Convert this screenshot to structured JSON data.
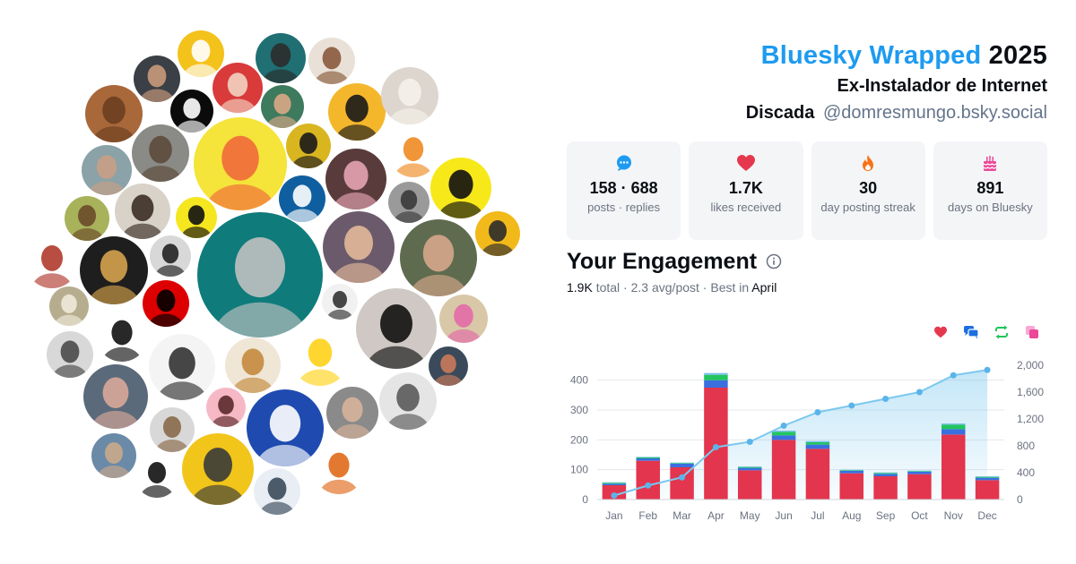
{
  "header": {
    "brand": "Bluesky Wrapped",
    "year": "2025",
    "subtitle": "Ex-Instalador de Internet",
    "display_name": "Discada",
    "handle": "@domresmungo.bsky.social"
  },
  "stats": [
    {
      "icon": "speech-bubble-icon",
      "color": "#1d9bf0",
      "value": "158 · 688",
      "label": "posts · replies"
    },
    {
      "icon": "heart-icon",
      "color": "#e5384f",
      "value": "1.7K",
      "label": "likes received"
    },
    {
      "icon": "fire-icon",
      "color": "#f97316",
      "value": "30",
      "label": "day posting streak"
    },
    {
      "icon": "cake-icon",
      "color": "#ec4899",
      "value": "891",
      "label": "days on Bluesky"
    }
  ],
  "engagement": {
    "title": "Your Engagement",
    "total": "1.9K",
    "total_label": "total",
    "avg": "2.3 avg/post",
    "best_label": "Best in",
    "best_month": "April"
  },
  "legend_icons": [
    {
      "name": "likes-legend-icon",
      "color": "#e5384f"
    },
    {
      "name": "replies-legend-icon",
      "color": "#1d6fe0"
    },
    {
      "name": "reposts-legend-icon",
      "color": "#22c55e"
    },
    {
      "name": "quotes-legend-icon",
      "color": "#ec4899"
    }
  ],
  "chart_data": {
    "type": "bar",
    "categories": [
      "Jan",
      "Feb",
      "Mar",
      "Apr",
      "May",
      "Jun",
      "Jul",
      "Aug",
      "Sep",
      "Oct",
      "Nov",
      "Dec"
    ],
    "series": [
      {
        "color": "#e3354d",
        "values": [
          48,
          130,
          108,
          375,
          98,
          200,
          170,
          88,
          78,
          85,
          218,
          65
        ]
      },
      {
        "color": "#3b6fe0",
        "values": [
          5,
          8,
          12,
          25,
          8,
          15,
          14,
          8,
          8,
          8,
          18,
          8
        ]
      },
      {
        "color": "#22c55e",
        "values": [
          3,
          3,
          2,
          18,
          3,
          12,
          8,
          2,
          3,
          2,
          15,
          3
        ]
      },
      {
        "color": "#7cc0ee",
        "values": [
          2,
          2,
          2,
          6,
          2,
          4,
          4,
          2,
          2,
          2,
          4,
          2
        ]
      }
    ],
    "cumulative": {
      "color": "#7cc8ef",
      "values": [
        60,
        210,
        330,
        780,
        860,
        1100,
        1300,
        1400,
        1500,
        1600,
        1850,
        1930
      ]
    },
    "ylim": [
      0,
      450
    ],
    "yticks": [
      0,
      100,
      200,
      300,
      400
    ],
    "y2lim": [
      0,
      2000
    ],
    "y2ticks": [
      0,
      400,
      800,
      1200,
      1600,
      2000
    ],
    "y2tick_labels": [
      "0",
      "400",
      "800",
      "1,200",
      "1,600",
      "2,000"
    ],
    "grid": true
  },
  "avatars": [
    {
      "name": "avatar-dog-shiba",
      "bg": "#f3c21b",
      "fg": "#ffffff"
    },
    {
      "name": "avatar-teal-woman",
      "bg": "#1f6f73",
      "fg": "#2b2b2b"
    },
    {
      "name": "avatar-woman-beige",
      "bg": "#e9e1d8",
      "fg": "#8a5a3c"
    },
    {
      "name": "avatar-man-beard",
      "bg": "#3b3f46",
      "fg": "#c99a7a"
    },
    {
      "name": "avatar-santa",
      "bg": "#d93b3b",
      "fg": "#f2d3c0"
    },
    {
      "name": "avatar-dog-brown",
      "bg": "#a8683a",
      "fg": "#6b3f20"
    },
    {
      "name": "avatar-symbol",
      "bg": "#0b0b0b",
      "fg": "#ffffff"
    },
    {
      "name": "avatar-man-glasses",
      "bg": "#3d7a5e",
      "fg": "#d9a885"
    },
    {
      "name": "avatar-cartoon-yellow",
      "bg": "#f4b72b",
      "fg": "#1a1a1a"
    },
    {
      "name": "avatar-poodle",
      "bg": "#dcd6cf",
      "fg": "#f5f1ea"
    },
    {
      "name": "avatar-old-man",
      "bg": "#8aa2a8",
      "fg": "#c79f84"
    },
    {
      "name": "avatar-street",
      "bg": "#8a8a86",
      "fg": "#5c4a3b"
    },
    {
      "name": "avatar-beaker",
      "bg": "#f5e43a",
      "fg": "#ef6a3a"
    },
    {
      "name": "avatar-skeleton",
      "bg": "#d9b520",
      "fg": "#1a1a1a"
    },
    {
      "name": "avatar-girl-pink",
      "bg": "#5a3b3b",
      "fg": "#e6a4b4"
    },
    {
      "name": "avatar-tiger",
      "bg": "#ffffff",
      "fg": "#f08a24"
    },
    {
      "name": "avatar-medo-delirio",
      "bg": "#f7e81a",
      "fg": "#111111"
    },
    {
      "name": "avatar-tree-art",
      "bg": "#a7b25a",
      "fg": "#6b4a2a"
    },
    {
      "name": "avatar-bald-beard",
      "bg": "#d8d2c8",
      "fg": "#3b2e25"
    },
    {
      "name": "avatar-folha",
      "bg": "#0f5fa0",
      "fg": "#ffffff"
    },
    {
      "name": "avatar-bw-men",
      "bg": "#9a9a9a",
      "fg": "#3a3a3a"
    },
    {
      "name": "avatar-eye-logo",
      "bg": "#f6e61f",
      "fg": "#111111"
    },
    {
      "name": "avatar-cartoon-man",
      "bg": "#f2b91a",
      "fg": "#2b2b2b"
    },
    {
      "name": "avatar-witch",
      "bg": "#ffffff",
      "fg": "#b03a2e"
    },
    {
      "name": "avatar-pearl-earring",
      "bg": "#1e1e1e",
      "fg": "#d4a24c"
    },
    {
      "name": "avatar-comic-man",
      "bg": "#d8d8d8",
      "fg": "#222222"
    },
    {
      "name": "avatar-dialing-progress",
      "bg": "#0f7b7b",
      "fg": "#c0c0c0"
    },
    {
      "name": "avatar-headphones",
      "bg": "#6b5a6b",
      "fg": "#e2b89a"
    },
    {
      "name": "avatar-glasses-man",
      "bg": "#5f6b4f",
      "fg": "#d6a78a"
    },
    {
      "name": "avatar-llama",
      "bg": "#b6ad8e",
      "fg": "#efe9da"
    },
    {
      "name": "avatar-germany-flag",
      "bg": "#dd0000",
      "fg": "#000000"
    },
    {
      "name": "avatar-bird-sketch",
      "bg": "#f1f1f1",
      "fg": "#333333"
    },
    {
      "name": "avatar-black-cat",
      "bg": "#cfc8c4",
      "fg": "#111111"
    },
    {
      "name": "avatar-pink-hair",
      "bg": "#d8c8a8",
      "fg": "#e46aa6"
    },
    {
      "name": "avatar-laptop-man",
      "bg": "#d8d8d8",
      "fg": "#4a4a4a"
    },
    {
      "name": "avatar-bw-woman",
      "bg": "#ffffff",
      "fg": "#111111"
    },
    {
      "name": "avatar-cartoon-bird",
      "bg": "#f4f4f4",
      "fg": "#333333"
    },
    {
      "name": "avatar-golden-dog",
      "bg": "#efe6d6",
      "fg": "#c48a3e"
    },
    {
      "name": "avatar-rubber-duck",
      "bg": "#ffffff",
      "fg": "#ffd21a"
    },
    {
      "name": "avatar-man-red",
      "bg": "#3a4a5a",
      "fg": "#c97a5a"
    },
    {
      "name": "avatar-old-man-white",
      "bg": "#5a6a7a",
      "fg": "#d8a89a"
    },
    {
      "name": "avatar-bald-gray",
      "bg": "#e5e5e5",
      "fg": "#5a5a5a"
    },
    {
      "name": "avatar-curly-woman",
      "bg": "#f7b8c6",
      "fg": "#5a2a2a"
    },
    {
      "name": "avatar-camarote",
      "bg": "#1f4bb0",
      "fg": "#ffffff"
    },
    {
      "name": "avatar-young-man",
      "bg": "#8a8a8a",
      "fg": "#d6b29a"
    },
    {
      "name": "avatar-bearded-sketch",
      "bg": "#d8d8d8",
      "fg": "#8a6a4a"
    },
    {
      "name": "avatar-glasses-gray",
      "bg": "#6a8aa8",
      "fg": "#c9a88a"
    },
    {
      "name": "avatar-crash",
      "bg": "#ffffff",
      "fg": "#e06a1a"
    },
    {
      "name": "avatar-emu",
      "bg": "#f1c51a",
      "fg": "#3a3a3a"
    },
    {
      "name": "avatar-curly-bw",
      "bg": "#ffffff",
      "fg": "#111111"
    },
    {
      "name": "avatar-suit-man",
      "bg": "#e8eef4",
      "fg": "#3a4a5a"
    }
  ]
}
